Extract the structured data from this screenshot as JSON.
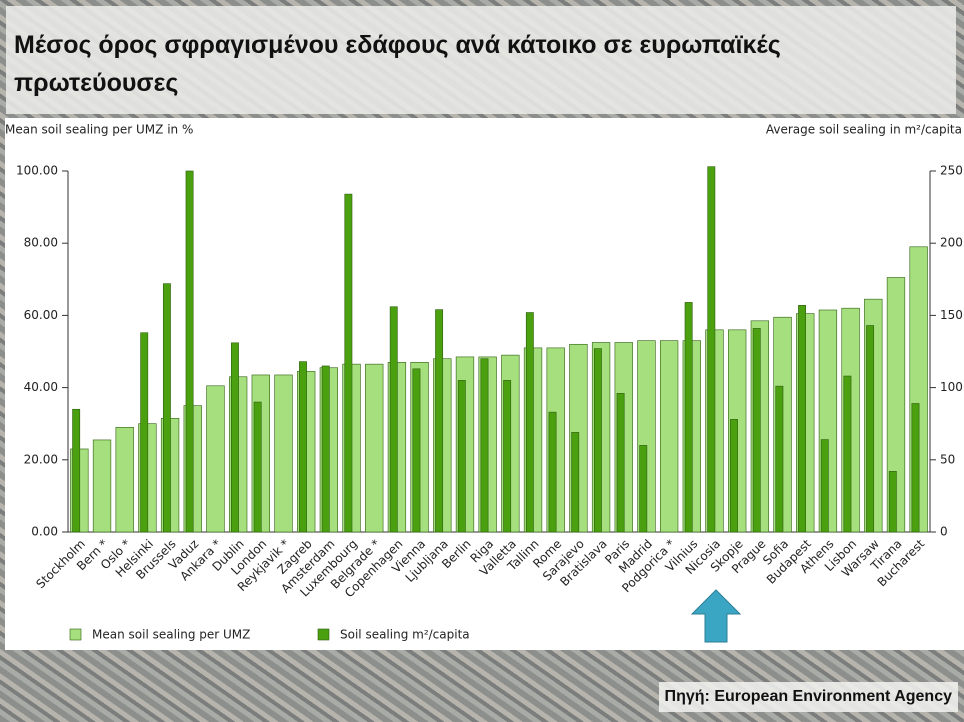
{
  "title": "Μέσος όρος σφραγισμένου εδάφους ανά κάτοικο σε ευρωπαϊκές πρωτεύουσες",
  "source": "Πηγή:  European Environment Agency",
  "chart_data": {
    "type": "bar",
    "ylabel": "Mean soil sealing per UMZ in %",
    "y2label": "Average soil sealing in m²/capita",
    "categories": [
      "Stockholm",
      "Bern *",
      "Oslo *",
      "Helsinki",
      "Brussels",
      "Vaduz",
      "Ankara *",
      "Dublin",
      "London",
      "Reykjavik *",
      "Zagreb",
      "Amsterdam",
      "Luxembourg",
      "Belgrade *",
      "Copenhagen",
      "Vienna",
      "Ljubljana",
      "Berlin",
      "Riga",
      "Valletta",
      "Tallinn",
      "Rome",
      "Sarajevo",
      "Bratislava",
      "Paris",
      "Madrid",
      "Podgorica *",
      "Vilnius",
      "Nicosia",
      "Skopje",
      "Prague",
      "Sofia",
      "Budapest",
      "Athens",
      "Lisbon",
      "Warsaw",
      "Tirana",
      "Bucharest"
    ],
    "series": [
      {
        "name": "Mean soil sealing per UMZ",
        "color": "#a6e07e",
        "values": [
          23,
          25.5,
          29,
          30,
          31.5,
          35,
          40.5,
          43,
          43.5,
          43.5,
          44.5,
          45.5,
          46.5,
          46.5,
          47,
          47,
          48,
          48.5,
          48.5,
          49,
          51,
          51,
          52,
          52.5,
          52.5,
          53,
          53,
          53,
          56,
          56,
          58.5,
          59.5,
          60.5,
          61.5,
          62,
          64.5,
          70.5,
          79
        ]
      },
      {
        "name": "Soil sealing m²/capita",
        "color": "#4aa00f",
        "axis": "y2",
        "values": [
          85,
          null,
          null,
          138,
          172,
          250,
          null,
          131,
          90,
          null,
          118,
          115,
          234,
          null,
          156,
          113,
          154,
          105,
          120,
          105,
          152,
          83,
          69,
          127,
          96,
          60,
          null,
          159,
          253,
          78,
          141,
          101,
          157,
          64,
          108,
          143,
          42,
          89
        ]
      }
    ],
    "ylim": [
      0,
      100
    ],
    "yticks": [
      {
        "value": 0,
        "label": "0.00"
      },
      {
        "value": 20,
        "label": "20.00"
      },
      {
        "value": 40,
        "label": "40.00"
      },
      {
        "value": 60,
        "label": "60.00"
      },
      {
        "value": 80,
        "label": "80.00"
      },
      {
        "value": 100,
        "label": "100.00"
      }
    ],
    "y2lim": [
      0,
      250
    ],
    "y2ticks": [
      0,
      50,
      100,
      150,
      200,
      250
    ],
    "grid": false
  }
}
